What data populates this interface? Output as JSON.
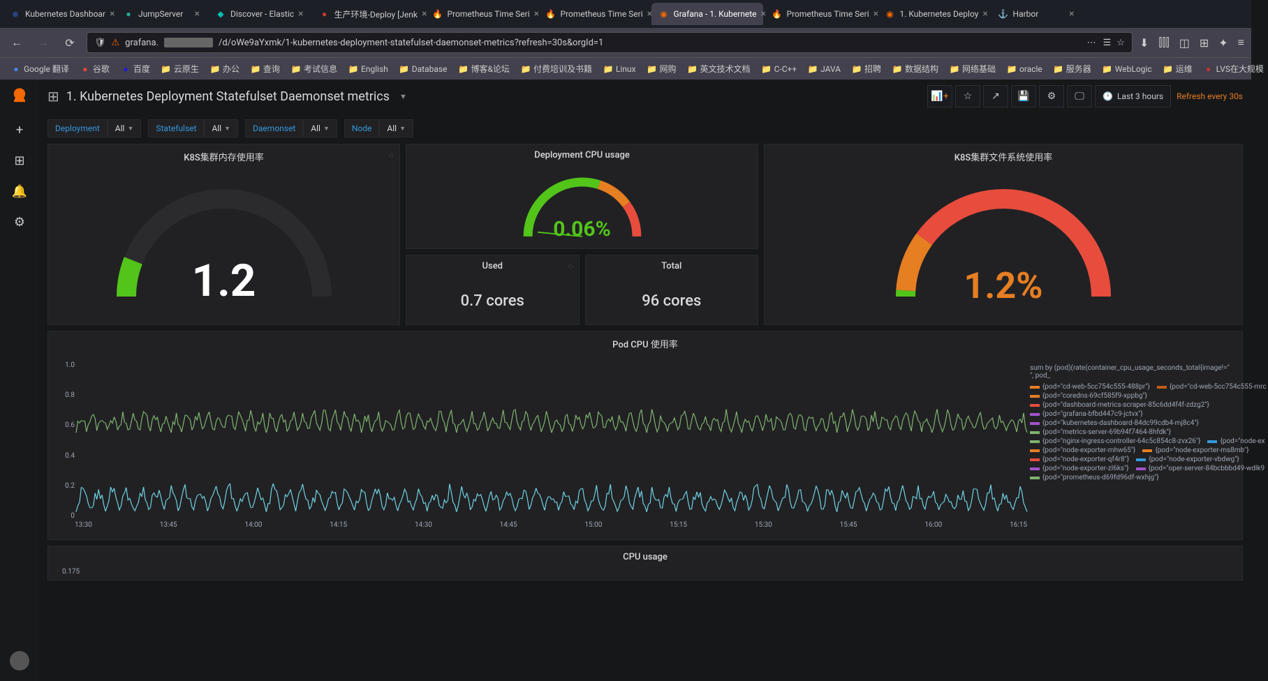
{
  "browser_tabs": [
    {
      "label": "Kubernetes Dashboar",
      "icon": "⎈",
      "icon_color": "#326ce5"
    },
    {
      "label": "JumpServer",
      "icon": "●",
      "icon_color": "#1ab394"
    },
    {
      "label": "Discover - Elastic",
      "icon": "◆",
      "icon_color": "#00bfb3"
    },
    {
      "label": "生产环境-Deploy [Jenk",
      "icon": "●",
      "icon_color": "#d33833"
    },
    {
      "label": "Prometheus Time Seri",
      "icon": "🔥",
      "icon_color": "#e6522c"
    },
    {
      "label": "Prometheus Time Seri",
      "icon": "🔥",
      "icon_color": "#e6522c"
    },
    {
      "label": "Grafana - 1. Kubernete",
      "icon": "◉",
      "icon_color": "#f46800",
      "active": true
    },
    {
      "label": "Prometheus Time Seri",
      "icon": "🔥",
      "icon_color": "#e6522c"
    },
    {
      "label": "1. Kubernetes Deploy",
      "icon": "◉",
      "icon_color": "#f46800"
    },
    {
      "label": "Harbor",
      "icon": "⚓",
      "icon_color": "#60b932"
    }
  ],
  "url": "/d/oWe9aYxmk/1-kubernetes-deployment-statefulset-daemonset-metrics?refresh=30s&orgId=1",
  "url_prefix": "grafana.",
  "bookmarks": [
    {
      "label": "Google 翻译",
      "color": "#4285f4"
    },
    {
      "label": "谷歌",
      "color": "#ea4335"
    },
    {
      "label": "百度",
      "color": "#2319dc"
    },
    {
      "label": "云原生",
      "folder": true
    },
    {
      "label": "办公",
      "folder": true
    },
    {
      "label": "查询",
      "folder": true
    },
    {
      "label": "考试信息",
      "folder": true
    },
    {
      "label": "English",
      "folder": true
    },
    {
      "label": "Database",
      "folder": true
    },
    {
      "label": "博客&论坛",
      "folder": true
    },
    {
      "label": "付费培训及书籍",
      "folder": true
    },
    {
      "label": "Linux",
      "folder": true
    },
    {
      "label": "网购",
      "folder": true
    },
    {
      "label": "英文技术文档",
      "folder": true
    },
    {
      "label": "C-C++",
      "folder": true
    },
    {
      "label": "JAVA",
      "folder": true
    },
    {
      "label": "招聘",
      "folder": true
    },
    {
      "label": "数据结构",
      "folder": true
    },
    {
      "label": "网络基础",
      "folder": true
    },
    {
      "label": "oracle",
      "folder": true
    },
    {
      "label": "服务器",
      "folder": true
    },
    {
      "label": "WebLogic",
      "folder": true
    },
    {
      "label": "运维",
      "folder": true
    },
    {
      "label": "LVS在大规模",
      "color": "#c9302c"
    }
  ],
  "dashboard_title": "1. Kubernetes Deployment Statefulset Daemonset metrics",
  "time_range": "Last 3 hours",
  "refresh": "Refresh every 30s",
  "filters": [
    {
      "label": "Deployment",
      "value": "All"
    },
    {
      "label": "Statefulset",
      "value": "All"
    },
    {
      "label": "Daemonset",
      "value": "All"
    },
    {
      "label": "Node",
      "value": "All"
    }
  ],
  "gauges": {
    "memory": {
      "title": "K8S集群内存使用率",
      "value": "1.2",
      "value_color": "#ffffff",
      "value_size": 64,
      "arc_start": -180,
      "arc_end": 0,
      "fill_pct": 0.12,
      "colors": [
        "#52c41a",
        "#52c41a"
      ],
      "track": "#2b2b2e"
    },
    "cpu": {
      "title": "Deployment CPU usage",
      "value": "0.06%",
      "value_color": "#52c41a",
      "value_size": 30,
      "fill_pct": 0.06,
      "segments": [
        {
          "c": "#52c41a",
          "p": 0.6
        },
        {
          "c": "#e67e22",
          "p": 0.2
        },
        {
          "c": "#e74c3c",
          "p": 0.2
        }
      ]
    },
    "fs": {
      "title": "K8S集群文件系统使用率",
      "value": "1.2%",
      "value_color": "#e67e22",
      "value_size": 52,
      "fill_pct": 0.12,
      "segments": [
        {
          "c": "#52c41a",
          "p": 0.02
        },
        {
          "c": "#e67e22",
          "p": 0.18
        },
        {
          "c": "#e74c3c",
          "p": 0.8
        }
      ]
    }
  },
  "stats": {
    "used": {
      "title": "Used",
      "value": "0.7 cores"
    },
    "total": {
      "title": "Total",
      "value": "96 cores"
    }
  },
  "pod_cpu_chart": {
    "title": "Pod CPU 使用率",
    "ylim": [
      0,
      1.0
    ],
    "yticks": [
      "0",
      "0.2",
      "0.4",
      "0.6",
      "0.8",
      "1.0"
    ],
    "xticks": [
      "13:30",
      "13:45",
      "14:00",
      "14:15",
      "14:30",
      "14:45",
      "15:00",
      "15:15",
      "15:30",
      "15:45",
      "16:00",
      "16:15"
    ],
    "main_series": {
      "color": "#7eb26d",
      "baseline": 0.55,
      "amplitude": 0.15,
      "freq": 90
    },
    "lower_series": {
      "color": "#6ed0e0",
      "baseline": 0.05,
      "amplitude": 0.18,
      "freq": 65
    },
    "legend_title": "sum by (pod)(rate(container_cpu_usage_seconds_total{image!=\" \", pod_",
    "legend": [
      {
        "c": "#e67e22",
        "t": "{pod=\"cd-web-5cc754c555-488pr\"}",
        "c2": "#c15c17",
        "t2": "{pod=\"cd-web-5cc754c555-mrc"
      },
      {
        "c": "#e67e22",
        "t": "{pod=\"coredns-69cf585f9-xppbg\"}"
      },
      {
        "c": "#e74c3c",
        "t": "{pod=\"dashboard-metrics-scraper-85c6dd4f4f-zdzg2\"}"
      },
      {
        "c": "#a352cc",
        "t": "{pod=\"grafana-bfbd447c9-jctvx\"}"
      },
      {
        "c": "#a352cc",
        "t": "{pod=\"kubernetes-dashboard-84dc99cdb4-mj8c4\"}"
      },
      {
        "c": "#7eb26d",
        "t": "{pod=\"metrics-server-69b94f7464-8hfdk\"}"
      },
      {
        "c": "#7eb26d",
        "t": "{pod=\"nginx-ingress-controller-64c5c854c8-zvx26\"}",
        "c2": "#3498db",
        "t2": "{pod=\"node-ex"
      },
      {
        "c": "#e67e22",
        "t": "{pod=\"node-exporter-mhw65\"}",
        "c2": "#e67e22",
        "t2": "{pod=\"node-exporter-ms8mb\"}"
      },
      {
        "c": "#e74c3c",
        "t": "{pod=\"node-exporter-qf4r8\"}",
        "c2": "#3498db",
        "t2": "{pod=\"node-exporter-vbdwg\"}"
      },
      {
        "c": "#a352cc",
        "t": "{pod=\"node-exporter-zl6ks\"}",
        "c2": "#a352cc",
        "t2": "{pod=\"oper-server-84bcbbbd49-wdlk9"
      },
      {
        "c": "#7eb26d",
        "t": "{pod=\"prometheus-d69fd96df-wxhjg\"}"
      }
    ]
  },
  "cpu_usage_chart": {
    "title": "CPU usage",
    "ytick": "0.175"
  }
}
